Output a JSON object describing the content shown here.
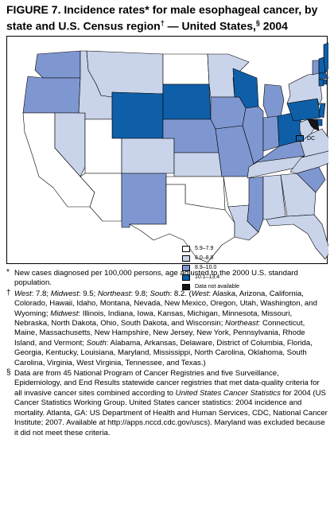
{
  "title": {
    "line1": "FIGURE 7. Incidence rates* for male esophageal cancer, by",
    "line2a": "state and U.S. Census region",
    "line2b": " — United States,",
    "line2c": " 2004",
    "sup_dagger": "†",
    "sup_section": "§"
  },
  "colors": {
    "c1": "#ffffff",
    "c2": "#c9d3ea",
    "c3": "#7f97d0",
    "c4": "#0f5fa8",
    "c5": "#141414",
    "border": "#000000"
  },
  "legend": [
    {
      "label": "5.9–7.9",
      "color": "#ffffff"
    },
    {
      "label": "8.0–8.8",
      "color": "#c9d3ea"
    },
    {
      "label": "8.9–10.0",
      "color": "#7f97d0"
    },
    {
      "label": "10.1–13.4",
      "color": "#0f5fa8"
    },
    {
      "label": "Data not available",
      "color": "#141414"
    }
  ],
  "dc_label": "DC",
  "dc_color": "#0f5fa8",
  "state_classes": {
    "WA": 3,
    "OR": 3,
    "CA": 1,
    "NV": 2,
    "ID": 2,
    "MT": 2,
    "WY": 4,
    "UT": 1,
    "AZ": 1,
    "CO": 2,
    "NM": 3,
    "ND": 1,
    "SD": 4,
    "NE": 3,
    "KS": 2,
    "OK": 1,
    "TX": 1,
    "MN": 2,
    "IA": 3,
    "MO": 3,
    "AR": 1,
    "LA": 2,
    "WI": 4,
    "IL": 3,
    "MI": 3,
    "IN": 3,
    "OH": 4,
    "KY": 3,
    "TN": 2,
    "MS": 3,
    "AL": 2,
    "GA": 2,
    "FL": 2,
    "SC": 3,
    "NC": 2,
    "VA": 2,
    "WV": 2,
    "PA": 4,
    "NY": 2,
    "VT": 3,
    "NH": 4,
    "ME": 4,
    "MA": 4,
    "CT": 4,
    "RI": 4,
    "NJ": 4,
    "DE": 4,
    "MD": 5
  },
  "notes": {
    "n1_mark": "*",
    "n1": "New cases diagnosed per 100,000 persons, age adjusted to the 2000 U.S. standard population.",
    "n2_mark": "†",
    "n2_parts": [
      [
        "West",
        true
      ],
      [
        ": 7.8; ",
        false
      ],
      [
        "Midwest",
        true
      ],
      [
        ": 9.5; ",
        false
      ],
      [
        "Northeast",
        true
      ],
      [
        ": 9.8; ",
        false
      ],
      [
        "South",
        true
      ],
      [
        ": 8.2. (",
        false
      ],
      [
        "West",
        true
      ],
      [
        ": Alaska, Arizona, California, Colorado, Hawaii, Idaho, Montana, Nevada, New Mexico, Oregon, Utah, Washington, and Wyoming; ",
        false
      ],
      [
        "Midwest",
        true
      ],
      [
        ": Illinois, Indiana, Iowa, Kansas, Michigan, Minnesota, Missouri, Nebraska, North Dakota, Ohio, South Dakota, and Wisconsin; ",
        false
      ],
      [
        "Northeast",
        true
      ],
      [
        ": Connecticut, Maine, Massachusetts, New Hampshire, New Jersey, New York, Pennsylvania, Rhode Island, and Vermont; ",
        false
      ],
      [
        "South",
        true
      ],
      [
        ": Alabama, Arkansas, Delaware, District of Columbia, Florida, Georgia, Kentucky, Louisiana, Maryland, Mississippi, North Carolina, Oklahoma, South Carolina, Virginia, West Virginia, Tennessee, and Texas.)",
        false
      ]
    ],
    "n3_mark": "§",
    "n3_parts": [
      [
        "Data are from 45 National Program of Cancer Registries and five Surveillance, Epidemiology, and End Results statewide cancer registries that met data-quality criteria for all invasive cancer sites combined according to ",
        false
      ],
      [
        "United States Cancer Statistics",
        true
      ],
      [
        " for 2004 (US Cancer Statistics Working Group. United States cancer statistics: 2004 incidence and mortality. Atlanta, GA: US Department of Health and Human Services, CDC, National Cancer Institute; 2007. Available at http://apps.nccd.cdc.gov/uscs). Maryland was excluded because it did not meet these criteria.",
        false
      ]
    ]
  }
}
